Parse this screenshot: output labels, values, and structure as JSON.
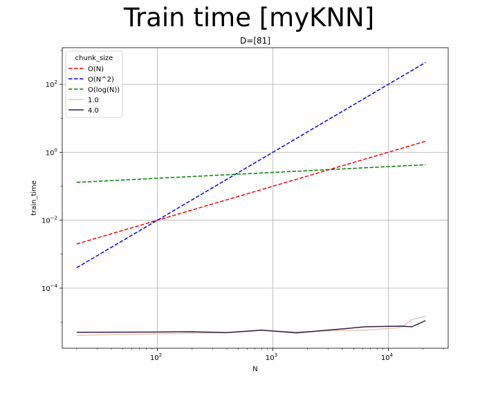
{
  "figure": {
    "suptitle": "Train time [myKNN]"
  },
  "chart_data": {
    "type": "line",
    "title": "D=[81]",
    "xlabel": "N",
    "ylabel": "train_time",
    "xscale": "log",
    "yscale": "log",
    "xlim": [
      15,
      33000
    ],
    "ylim": [
      1.7e-06,
      1200
    ],
    "grid": true,
    "x_ticks": [
      {
        "value": 100,
        "base": "10",
        "exp": "2"
      },
      {
        "value": 1000,
        "base": "10",
        "exp": "3"
      },
      {
        "value": 10000,
        "base": "10",
        "exp": "4"
      }
    ],
    "y_ticks": [
      {
        "value": 0.0001,
        "base": "10",
        "exp": "−4"
      },
      {
        "value": 0.01,
        "base": "10",
        "exp": "−2"
      },
      {
        "value": 1,
        "base": "10",
        "exp": "0"
      },
      {
        "value": 100,
        "base": "10",
        "exp": "2"
      }
    ],
    "legend": {
      "title": "chunk_size",
      "placement": "upper left"
    },
    "series": [
      {
        "name": "O(N)",
        "color": "#ff0000",
        "style": "dashed",
        "x": [
          20,
          21000
        ],
        "y": [
          0.002,
          2.1
        ]
      },
      {
        "name": "O(N^2)",
        "color": "#0000ff",
        "style": "dashed",
        "x": [
          20,
          21000
        ],
        "y": [
          0.0004,
          440
        ]
      },
      {
        "name": "O(log(N))",
        "color": "#008000",
        "style": "dashed",
        "x": [
          20,
          21000
        ],
        "y": [
          0.13,
          0.43
        ]
      },
      {
        "name": "1.0",
        "color": "#eec3b5",
        "style": "solid",
        "x": [
          20,
          100,
          200,
          400,
          800,
          1600,
          3200,
          6400,
          12800,
          16000,
          21000
        ],
        "y": [
          4.1e-06,
          4.5e-06,
          4.7e-06,
          4.9e-06,
          5.7e-06,
          5.1e-06,
          5.6e-06,
          5.8e-06,
          6.9e-06,
          1.2e-05,
          1.48e-05
        ]
      },
      {
        "name": "4.0",
        "color": "#2d1e3e",
        "style": "solid",
        "x": [
          20,
          100,
          200,
          400,
          800,
          1600,
          3200,
          6400,
          12800,
          16000,
          21000
        ],
        "y": [
          5e-06,
          5.1e-06,
          5.2e-06,
          4.9e-06,
          5.8e-06,
          4.8e-06,
          5.9e-06,
          7.3e-06,
          7.6e-06,
          7.3e-06,
          1.1e-05
        ]
      }
    ]
  }
}
